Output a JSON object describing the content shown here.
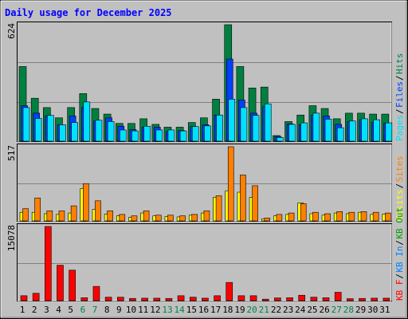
{
  "chart_data": [
    {
      "type": "bar",
      "title": "Daily usage for December 2025",
      "categories": [
        "1",
        "2",
        "3",
        "4",
        "5",
        "6",
        "7",
        "8",
        "9",
        "10",
        "11",
        "12",
        "13",
        "14",
        "15",
        "16",
        "17",
        "18",
        "19",
        "20",
        "21",
        "22",
        "23",
        "24",
        "25",
        "26",
        "27",
        "28",
        "29",
        "30",
        "31"
      ],
      "weekend_days": [
        "6",
        "7",
        "13",
        "14",
        "20",
        "21",
        "27",
        "28"
      ],
      "ymax_label": "624",
      "legend": [
        "Pages",
        "Files",
        "Hits"
      ],
      "ylim": [
        0,
        624
      ],
      "series": [
        {
          "name": "Hits",
          "color": "#008040",
          "values": [
            400,
            230,
            180,
            125,
            180,
            255,
            175,
            145,
            95,
            95,
            120,
            90,
            75,
            75,
            100,
            125,
            225,
            624,
            400,
            285,
            290,
            30,
            105,
            140,
            190,
            175,
            120,
            150,
            150,
            145,
            145
          ]
        },
        {
          "name": "Files",
          "color": "#0040ff",
          "values": [
            190,
            150,
            135,
            88,
            135,
            180,
            108,
            125,
            80,
            62,
            75,
            75,
            52,
            57,
            78,
            88,
            140,
            440,
            220,
            150,
            185,
            25,
            92,
            88,
            140,
            135,
            90,
            105,
            115,
            100,
            95
          ]
        },
        {
          "name": "Pages",
          "color": "#00e0ff",
          "values": [
            180,
            122,
            138,
            88,
            100,
            210,
            112,
            105,
            60,
            55,
            80,
            60,
            60,
            55,
            78,
            82,
            140,
            225,
            180,
            138,
            200,
            20,
            90,
            98,
            150,
            118,
            72,
            108,
            120,
            115,
            98
          ]
        }
      ]
    },
    {
      "type": "bar",
      "categories": [
        "1",
        "2",
        "3",
        "4",
        "5",
        "6",
        "7",
        "8",
        "9",
        "10",
        "11",
        "12",
        "13",
        "14",
        "15",
        "16",
        "17",
        "18",
        "19",
        "20",
        "21",
        "22",
        "23",
        "24",
        "25",
        "26",
        "27",
        "28",
        "29",
        "30",
        "31"
      ],
      "ymax_label": "517",
      "legend": [
        "Visits",
        "Sites"
      ],
      "ylim": [
        0,
        517
      ],
      "series": [
        {
          "name": "Sites",
          "color": "#ff8000",
          "values": [
            85,
            160,
            70,
            70,
            105,
            260,
            140,
            70,
            45,
            35,
            70,
            40,
            40,
            35,
            45,
            70,
            175,
            517,
            320,
            245,
            20,
            45,
            55,
            120,
            60,
            50,
            65,
            60,
            65,
            60,
            55
          ]
        },
        {
          "name": "Visits",
          "color": "#ffff00",
          "values": [
            60,
            60,
            50,
            45,
            55,
            225,
            80,
            48,
            35,
            25,
            55,
            35,
            30,
            28,
            40,
            55,
            165,
            210,
            200,
            165,
            15,
            35,
            45,
            125,
            50,
            40,
            55,
            50,
            60,
            45,
            48
          ]
        }
      ]
    },
    {
      "type": "bar",
      "categories": [
        "1",
        "2",
        "3",
        "4",
        "5",
        "6",
        "7",
        "8",
        "9",
        "10",
        "11",
        "12",
        "13",
        "14",
        "15",
        "16",
        "17",
        "18",
        "19",
        "20",
        "21",
        "22",
        "23",
        "24",
        "25",
        "26",
        "27",
        "28",
        "29",
        "30",
        "31"
      ],
      "ymax_label": "15078",
      "legend": [
        "KB F",
        "KB In",
        "KB Out"
      ],
      "ylim": [
        0,
        15078
      ],
      "series": [
        {
          "name": "KB F",
          "color": "#ff0000",
          "values": [
            1000,
            1500,
            15078,
            7200,
            6200,
            600,
            2900,
            700,
            700,
            450,
            500,
            500,
            450,
            1000,
            700,
            500,
            1000,
            3700,
            1000,
            1000,
            300,
            550,
            600,
            1100,
            700,
            600,
            1700,
            400,
            450,
            500,
            500
          ]
        }
      ]
    }
  ]
}
